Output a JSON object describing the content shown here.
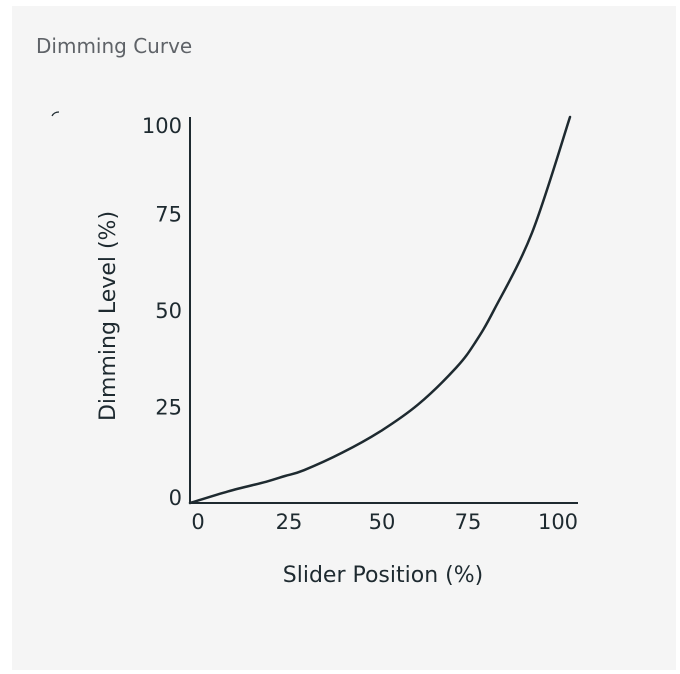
{
  "card": {
    "title": "Dimming Curve"
  },
  "colors": {
    "card_background": "#f5f5f5",
    "title_text": "#5f6368",
    "axis_and_curve": "#1e2a30"
  },
  "chart_data": {
    "type": "line",
    "title": "",
    "xlabel": "Slider Position (%)",
    "ylabel": "Dimming Level (%)",
    "xlim": [
      0,
      100
    ],
    "ylim": [
      0,
      100
    ],
    "x_ticks": [
      0,
      25,
      50,
      75,
      100
    ],
    "y_ticks": [
      0,
      25,
      50,
      75,
      100
    ],
    "x_tick_labels": [
      "0",
      "25",
      "50",
      "75",
      "100"
    ],
    "y_tick_labels": [
      "0",
      "25",
      "50",
      "75",
      "100"
    ],
    "grid": false,
    "legend": "none",
    "series": [
      {
        "x": [
          0,
          10,
          20,
          25,
          30,
          40,
          50,
          60,
          70,
          75,
          80,
          90,
          100
        ],
        "y": [
          0,
          3,
          5.5,
          7,
          8.5,
          13,
          18.5,
          25.5,
          35,
          41.5,
          50,
          70,
          100
        ]
      }
    ]
  }
}
